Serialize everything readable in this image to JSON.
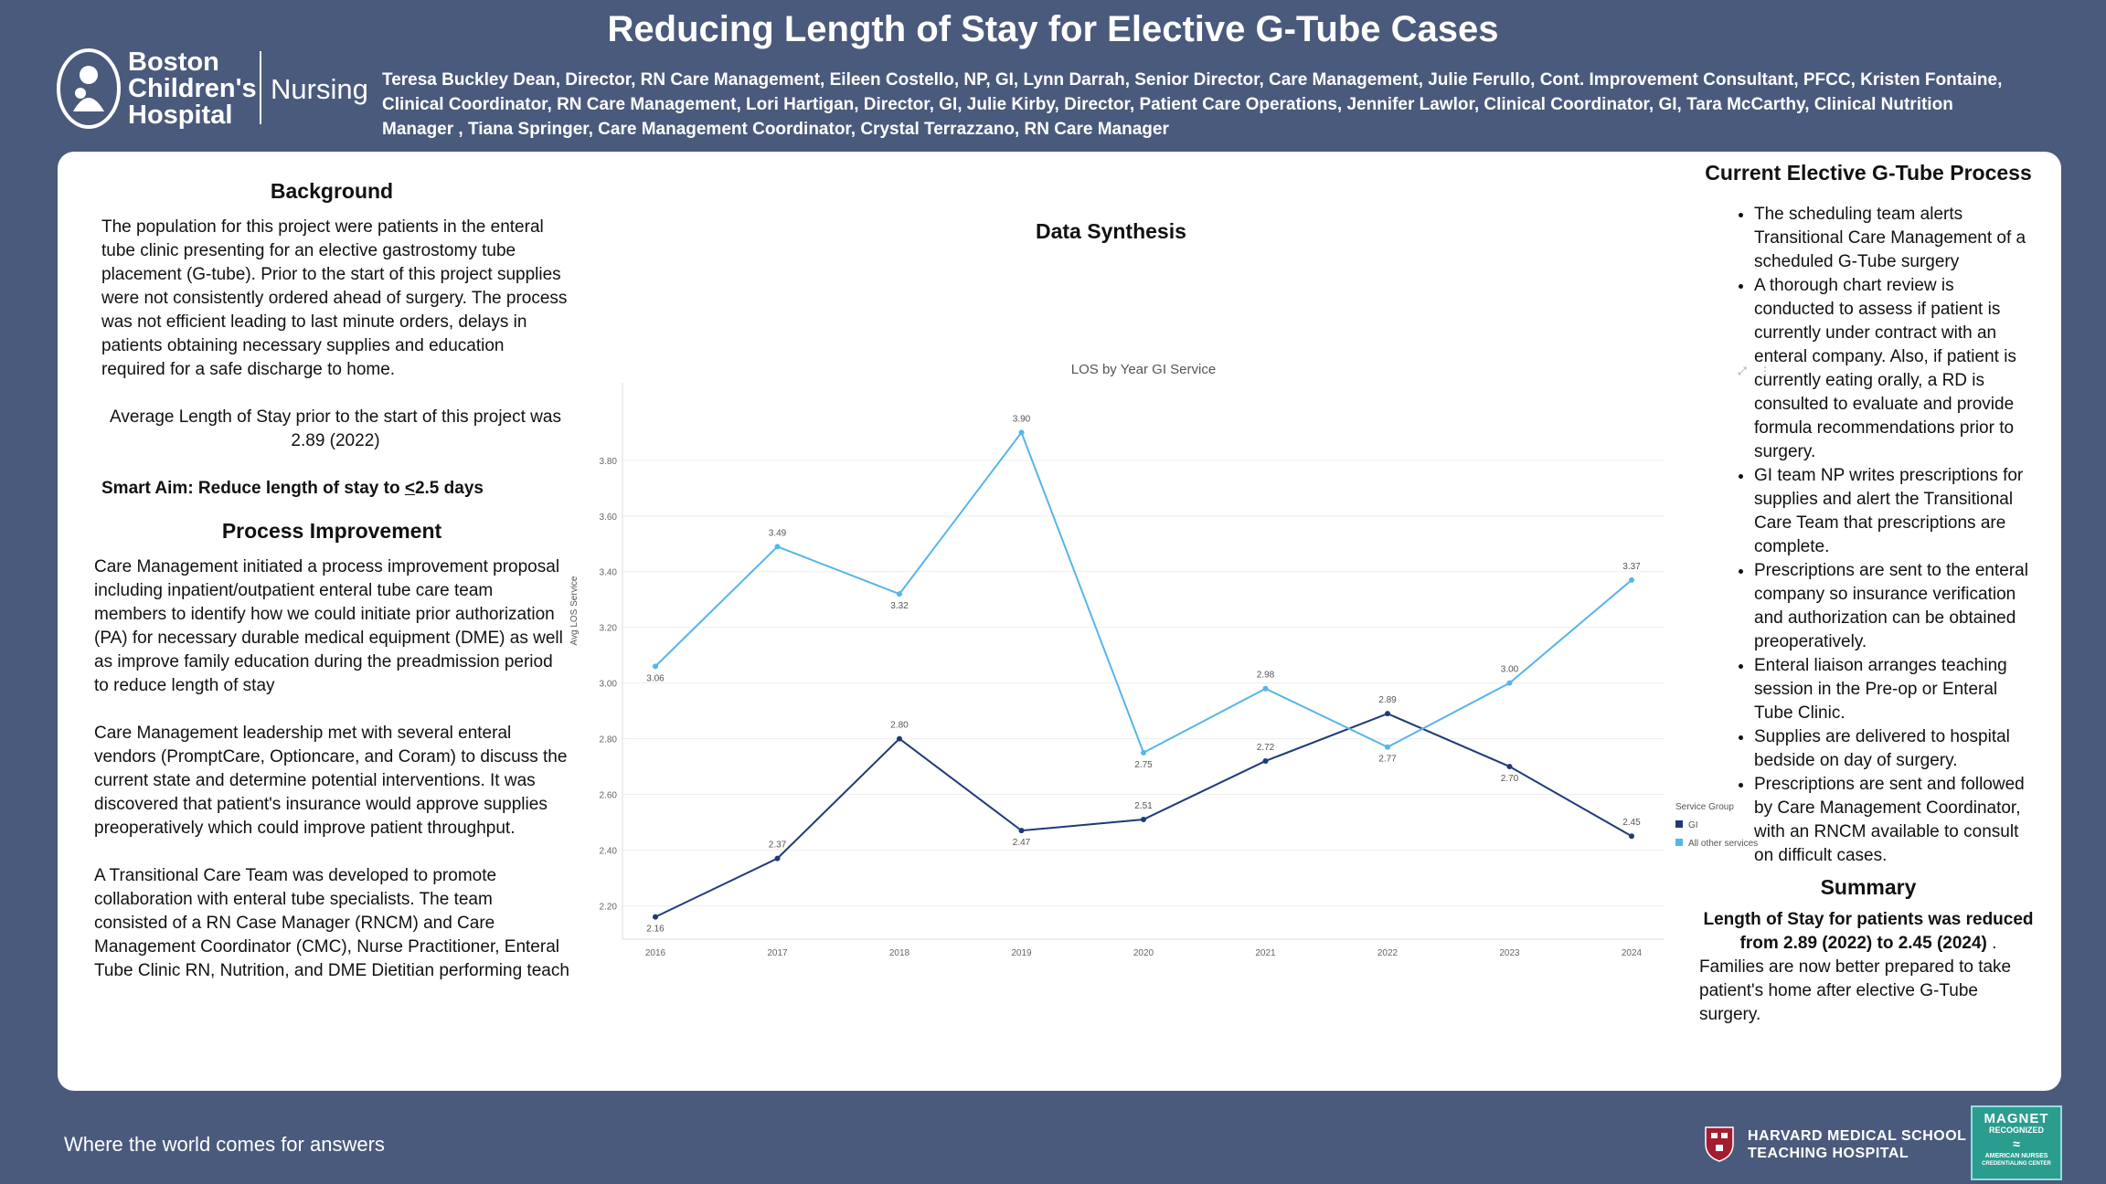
{
  "header": {
    "title": "Reducing Length of Stay for Elective G-Tube Cases",
    "logo_lines": [
      "Boston",
      "Children's",
      "Hospital"
    ],
    "logo_nursing": "Nursing",
    "authors": "Teresa Buckley Dean, Director, RN Care Management, Eileen Costello, NP, GI, Lynn Darrah, Senior Director, Care Management, Julie Ferullo, Cont. Improvement Consultant, PFCC, Kristen Fontaine, Clinical Coordinator, RN Care Management, Lori Hartigan, Director, GI, Julie Kirby, Director, Patient Care Operations, Jennifer Lawlor, Clinical Coordinator, GI, Tara McCarthy, Clinical Nutrition Manager , Tiana Springer, Care Management Coordinator, Crystal Terrazzano, RN Care Manager"
  },
  "background": {
    "heading": "Background",
    "text": "The population for this project were patients in the enteral tube clinic presenting for an elective gastrostomy tube placement (G-tube).  Prior to the start of this project supplies were not consistently ordered ahead of surgery.  The process was not efficient leading to last minute orders, delays in patients obtaining necessary supplies and education required for a safe discharge to home.",
    "avg_los": "Average Length of Stay prior to the start of this project was 2.89 (2022)",
    "smart_aim_prefix": "Smart Aim: Reduce length of stay to ",
    "smart_aim_value": "<2.5 days"
  },
  "process_improvement": {
    "heading": "Process Improvement",
    "p1": "Care Management initiated a process improvement proposal including inpatient/outpatient enteral tube care team members to identify how we could initiate prior authorization (PA) for necessary durable medical equipment (DME) as well as improve family education during the preadmission period to reduce length of stay",
    "p2": "Care Management leadership met with several enteral vendors (PromptCare, Optioncare, and Coram) to discuss the current state and determine potential interventions. It was discovered that patient's insurance would approve supplies preoperatively which could improve patient throughput.",
    "p3": "A Transitional Care Team was developed to promote collaboration with enteral tube specialists. The team consisted of a RN Case Manager (RNCM) and Care Management Coordinator (CMC), Nurse Practitioner, Enteral Tube Clinic RN, Nutrition, and DME Dietitian performing teach"
  },
  "data_synthesis": {
    "heading": "Data Synthesis"
  },
  "chart_data": {
    "type": "line",
    "title": "LOS by Year GI Service",
    "xlabel": "",
    "ylabel": "Avg LOS Service",
    "categories": [
      "2016",
      "2017",
      "2018",
      "2019",
      "2020",
      "2021",
      "2022",
      "2023",
      "2024"
    ],
    "ylim": [
      2.08,
      3.98
    ],
    "yticks": [
      2.2,
      2.4,
      2.6,
      2.8,
      3.0,
      3.2,
      3.4,
      3.6,
      3.8
    ],
    "legend_title": "Service Group",
    "legend_position": "right",
    "grid": true,
    "series": [
      {
        "name": "GI",
        "color": "#1f3a7a",
        "values": [
          2.16,
          2.37,
          2.8,
          2.47,
          2.51,
          2.72,
          2.89,
          2.7,
          2.45
        ]
      },
      {
        "name": "All other services",
        "color": "#55b6ea",
        "values": [
          3.06,
          3.49,
          3.32,
          3.9,
          2.75,
          2.98,
          2.77,
          3.0,
          3.37
        ]
      }
    ]
  },
  "current_process": {
    "heading": "Current Elective G-Tube Process",
    "items": [
      "The scheduling team alerts Transitional Care Management of a scheduled G-Tube surgery",
      "A thorough chart review is conducted  to assess if patient is currently under contract with an enteral company. Also, if patient is currently eating orally, a RD is consulted to evaluate and provide formula recommendations prior to surgery.",
      "GI team NP writes prescriptions for supplies and alert the Transitional Care Team that prescriptions are complete.",
      "Prescriptions are sent to the enteral company so insurance verification and authorization can be obtained preoperatively.",
      "Enteral liaison arranges teaching session in the Pre-op or Enteral Tube Clinic.",
      "Supplies are delivered to hospital bedside on day of surgery.",
      "Prescriptions are sent and followed by Care Management Coordinator, with an RNCM available to consult on difficult cases."
    ]
  },
  "summary": {
    "heading": "Summary",
    "bold_text": "Length of Stay for patients was reduced from 2.89 (2022) to 2.45 (2024)",
    "bold_suffix": " .",
    "text": "Families are now better prepared to take patient's home after elective G-Tube surgery."
  },
  "footer": {
    "tagline": "Where the world comes for answers",
    "harvard_line1": "HARVARD MEDICAL SCHOOL",
    "harvard_line2": "TEACHING HOSPITAL",
    "magnet_lines": [
      "MAGNET",
      "RECOGNIZED",
      "AMERICAN NURSES",
      "CREDENTIALING CENTER"
    ]
  }
}
